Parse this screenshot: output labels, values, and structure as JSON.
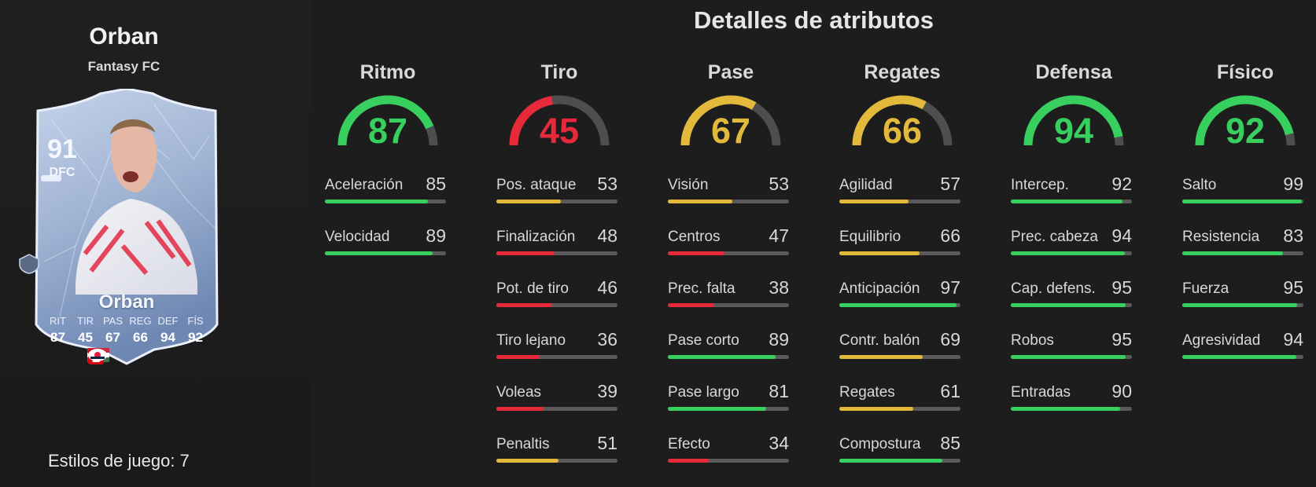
{
  "player": {
    "name": "Orban",
    "club": "Fantasy FC",
    "styles_text": "Estilos de juego: 7"
  },
  "card": {
    "rating": "91",
    "position": "DFC",
    "name": "Orban",
    "stat_labels": [
      "RIT",
      "TIR",
      "PAS",
      "REG",
      "DEF",
      "FÍS"
    ],
    "stat_values": [
      "87",
      "45",
      "67",
      "66",
      "94",
      "92"
    ]
  },
  "heading": "Detalles de atributos",
  "colors": {
    "green": "#37d05f",
    "yellow": "#e2b93b",
    "red": "#e8293a",
    "track": "#5a5a5a"
  },
  "categories": [
    {
      "name": "Ritmo",
      "value": 87,
      "stats": [
        {
          "label": "Aceleración",
          "value": 85
        },
        {
          "label": "Velocidad",
          "value": 89
        }
      ]
    },
    {
      "name": "Tiro",
      "value": 45,
      "stats": [
        {
          "label": "Pos. ataque",
          "value": 53
        },
        {
          "label": "Finalización",
          "value": 48
        },
        {
          "label": "Pot. de tiro",
          "value": 46
        },
        {
          "label": "Tiro lejano",
          "value": 36
        },
        {
          "label": "Voleas",
          "value": 39
        },
        {
          "label": "Penaltis",
          "value": 51
        }
      ]
    },
    {
      "name": "Pase",
      "value": 67,
      "stats": [
        {
          "label": "Visión",
          "value": 53
        },
        {
          "label": "Centros",
          "value": 47
        },
        {
          "label": "Prec. falta",
          "value": 38
        },
        {
          "label": "Pase corto",
          "value": 89
        },
        {
          "label": "Pase largo",
          "value": 81
        },
        {
          "label": "Efecto",
          "value": 34
        }
      ]
    },
    {
      "name": "Regates",
      "value": 66,
      "stats": [
        {
          "label": "Agilidad",
          "value": 57
        },
        {
          "label": "Equilibrio",
          "value": 66
        },
        {
          "label": "Anticipación",
          "value": 97
        },
        {
          "label": "Contr. balón",
          "value": 69
        },
        {
          "label": "Regates",
          "value": 61
        },
        {
          "label": "Compostura",
          "value": 85
        }
      ]
    },
    {
      "name": "Defensa",
      "value": 94,
      "stats": [
        {
          "label": "Intercep.",
          "value": 92
        },
        {
          "label": "Prec. cabeza",
          "value": 94
        },
        {
          "label": "Cap. defens.",
          "value": 95
        },
        {
          "label": "Robos",
          "value": 95
        },
        {
          "label": "Entradas",
          "value": 90
        }
      ]
    },
    {
      "name": "Físico",
      "value": 92,
      "stats": [
        {
          "label": "Salto",
          "value": 99
        },
        {
          "label": "Resistencia",
          "value": 83
        },
        {
          "label": "Fuerza",
          "value": 95
        },
        {
          "label": "Agresividad",
          "value": 94
        }
      ]
    }
  ]
}
